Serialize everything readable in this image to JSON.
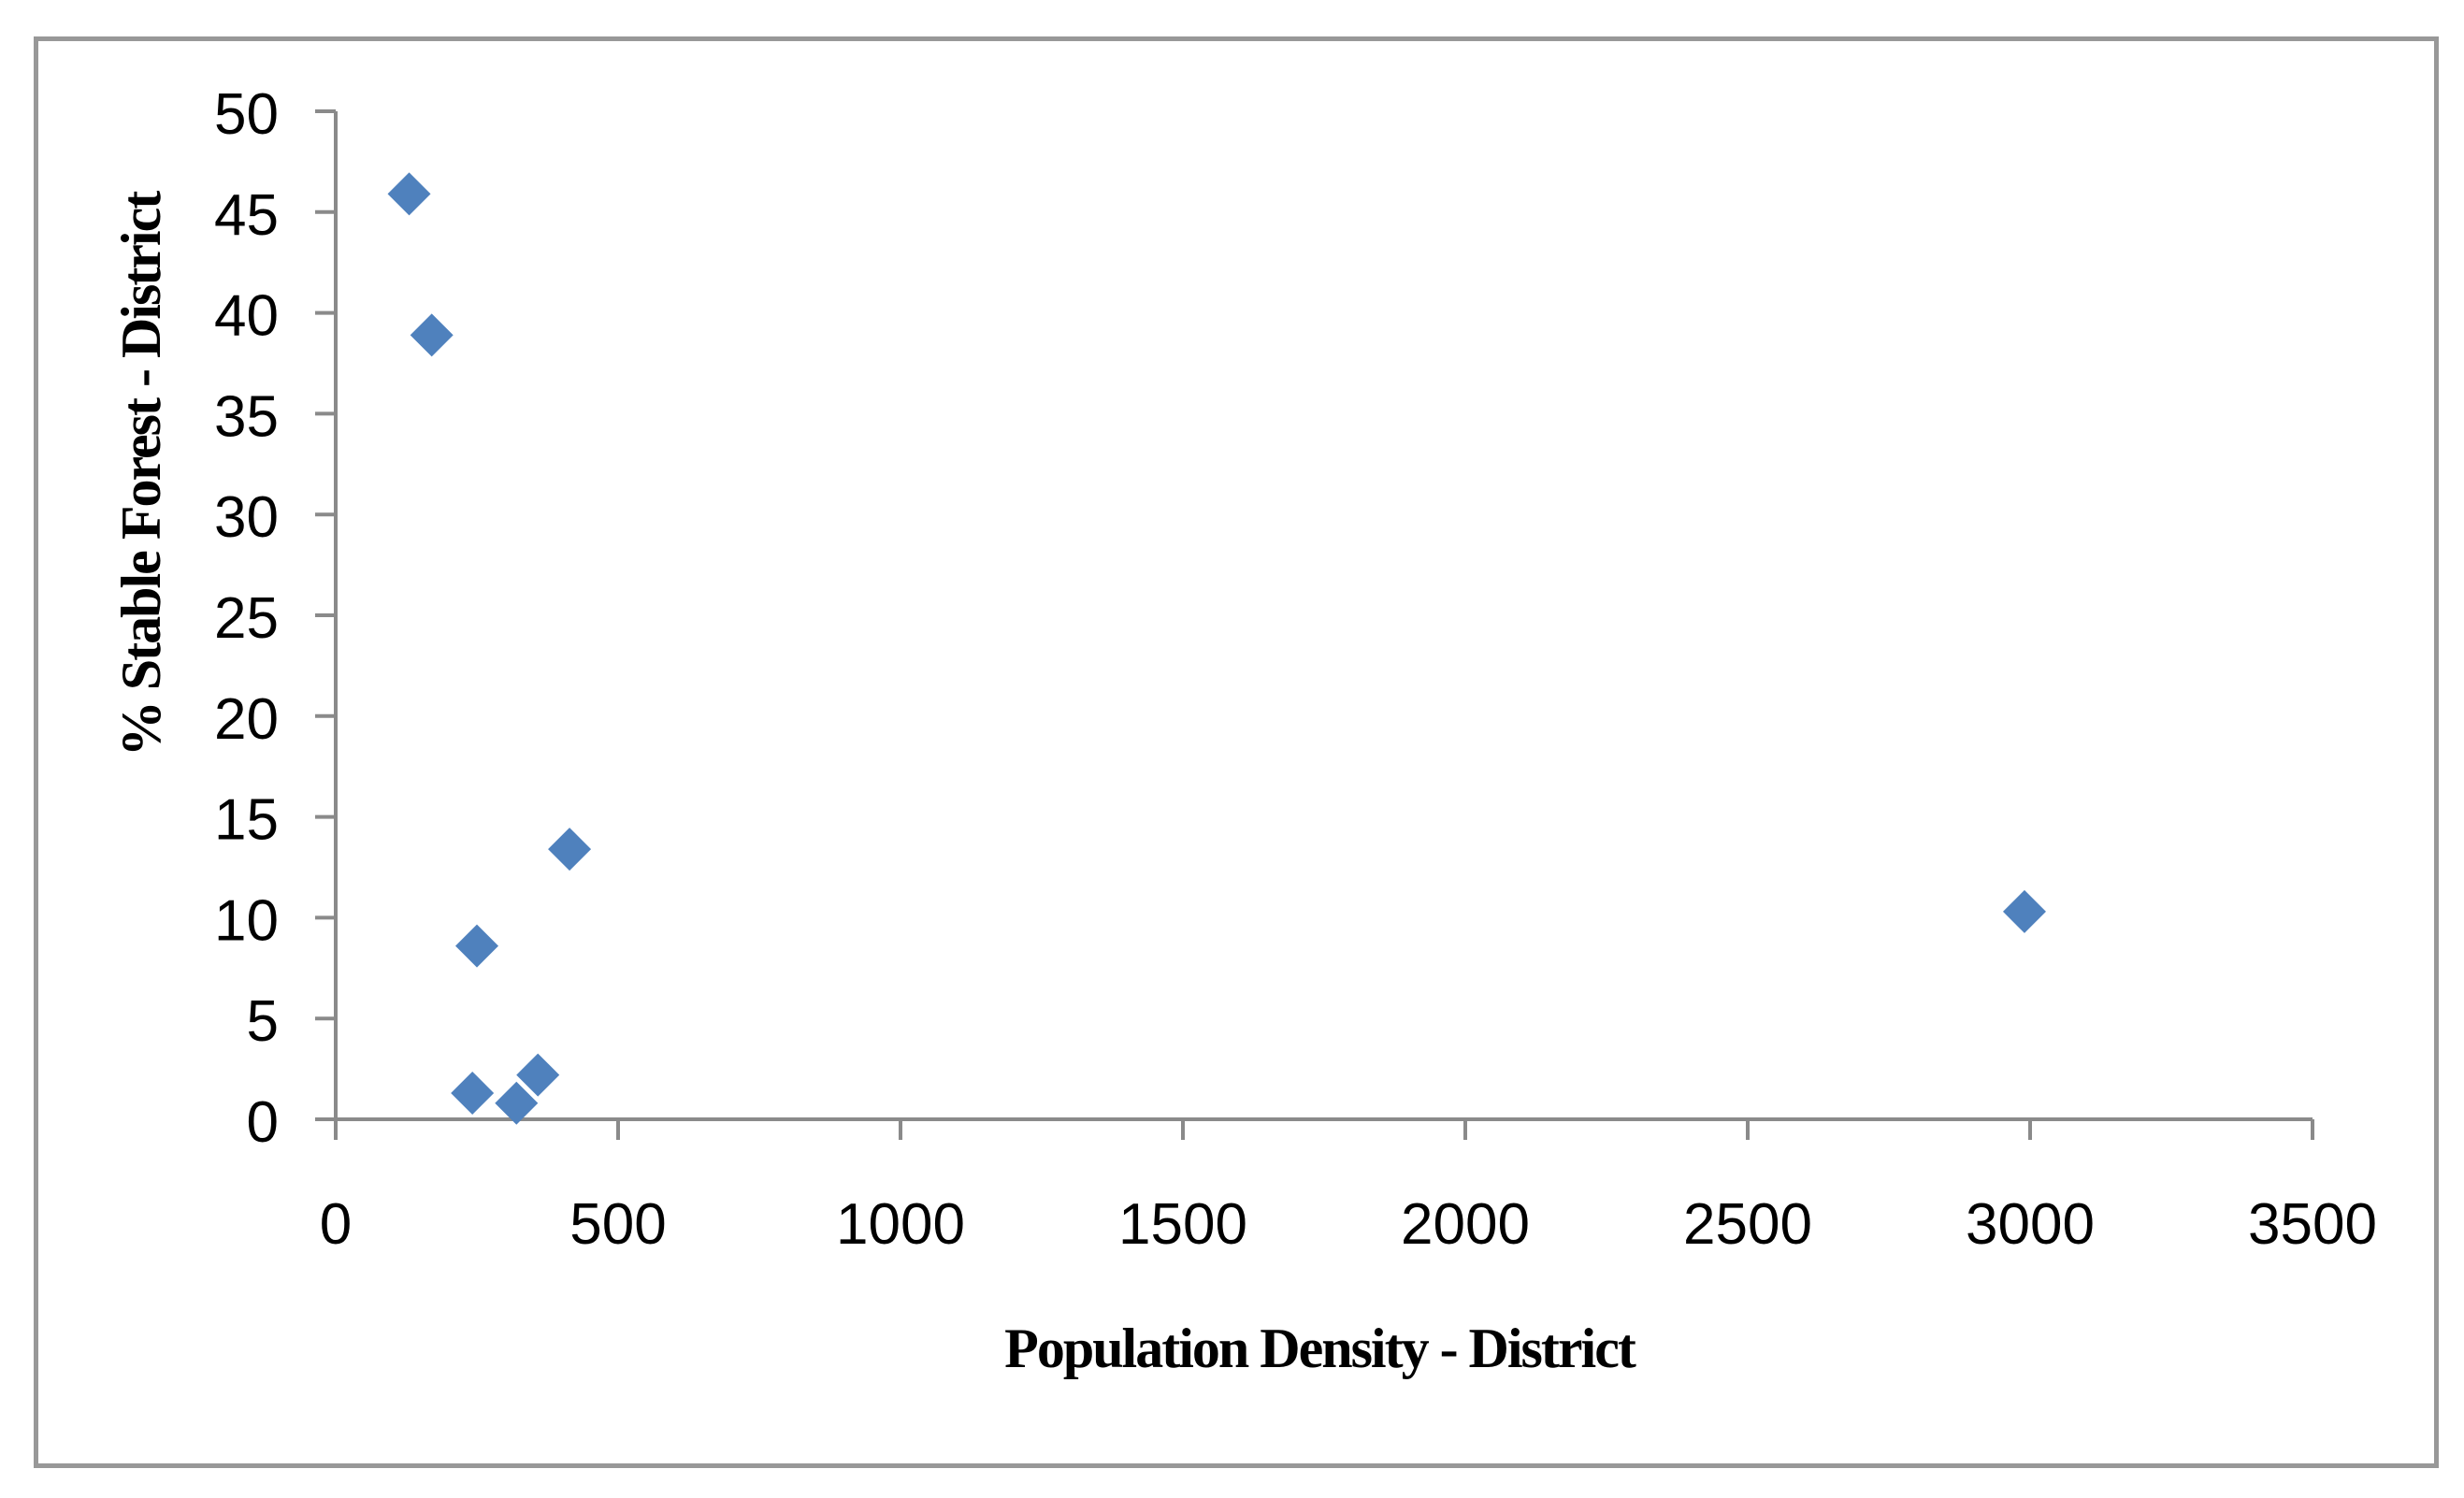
{
  "chart_data": {
    "type": "scatter",
    "title": "",
    "xlabel": "Population Density - District",
    "ylabel": "% Stable Forest - District",
    "xlim": [
      0,
      3500
    ],
    "ylim": [
      0,
      50
    ],
    "x_ticks": [
      0,
      500,
      1000,
      1500,
      2000,
      2500,
      3000,
      3500
    ],
    "y_ticks": [
      0,
      5,
      10,
      15,
      20,
      25,
      30,
      35,
      40,
      45,
      50
    ],
    "grid": false,
    "legend_position": "none",
    "marker_shape": "diamond",
    "marker_color": "#4f81bd",
    "marker_size_px": 46,
    "axis_color": "#8a8a8a",
    "frame_color": "#989898",
    "background_color": "#ffffff",
    "text_color": "#000000",
    "points": [
      {
        "x": 130,
        "y": 45.9
      },
      {
        "x": 170,
        "y": 38.9
      },
      {
        "x": 242,
        "y": 1.3
      },
      {
        "x": 250,
        "y": 8.6
      },
      {
        "x": 320,
        "y": 0.8
      },
      {
        "x": 358,
        "y": 2.2
      },
      {
        "x": 414,
        "y": 13.4
      },
      {
        "x": 2990,
        "y": 10.3
      }
    ]
  }
}
